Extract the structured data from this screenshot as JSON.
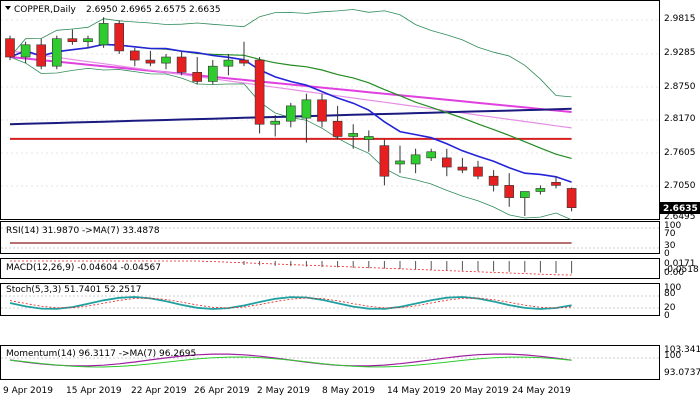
{
  "header": {
    "symbol_timeframe": "COPPER,Daily",
    "ohlc_text": "2.6950 2.6965 2.6575 2.6635"
  },
  "price_axis": {
    "ticks": [
      "2.9815",
      "2.9285",
      "2.8750",
      "2.8170",
      "2.7605",
      "2.7050",
      "2.6495"
    ],
    "current_price_label": "2.6635"
  },
  "indicators": {
    "rsi": {
      "label": "RSI(14) 31.9870  ->MA(7) 33.4878",
      "ticks": [
        "100",
        "70",
        "30",
        "0"
      ]
    },
    "macd": {
      "label": "MACD(12,26,9) -0.04604 -0.04567",
      "ticks": [
        "0.0171",
        "0.00",
        "-0.0518"
      ]
    },
    "stoch": {
      "label": "Stoch(5,3,3) 51.7401 52.2517",
      "ticks": [
        "100",
        "80",
        "20",
        "0"
      ]
    },
    "momentum": {
      "label": "Momentum(14) 96.3117  ->MA(7) 96.2695",
      "ticks": [
        "103.3413",
        "100",
        "93.0737"
      ]
    }
  },
  "x_axis": {
    "labels": [
      "9 Apr 2019",
      "15 Apr 2019",
      "22 Apr 2019",
      "26 Apr 2019",
      "2 May 2019",
      "8 May 2019",
      "14 May 2019",
      "20 May 2019",
      "24 May 2019"
    ]
  },
  "colors": {
    "bull": "#2ecc2e",
    "bear": "#e62020",
    "ma_fast": "#2323d8",
    "ma_medium": "#228b22",
    "ma_slow_magenta": "#e040e0",
    "ma_pink": "#e68fe6",
    "ma_navy": "#1a1a80",
    "ma_red": "#d42020",
    "bollinger": "#2e8b57",
    "grid": "#cccccc"
  },
  "chart_data": {
    "type": "candlestick",
    "title": "COPPER,Daily",
    "ylim": [
      2.645,
      3.0
    ],
    "dates": [
      "2019-04-08",
      "2019-04-09",
      "2019-04-10",
      "2019-04-11",
      "2019-04-12",
      "2019-04-15",
      "2019-04-16",
      "2019-04-17",
      "2019-04-18",
      "2019-04-19",
      "2019-04-22",
      "2019-04-23",
      "2019-04-24",
      "2019-04-25",
      "2019-04-26",
      "2019-04-29",
      "2019-04-30",
      "2019-05-01",
      "2019-05-02",
      "2019-05-03",
      "2019-05-06",
      "2019-05-07",
      "2019-05-08",
      "2019-05-09",
      "2019-05-10",
      "2019-05-13",
      "2019-05-14",
      "2019-05-15",
      "2019-05-16",
      "2019-05-17",
      "2019-05-20",
      "2019-05-21",
      "2019-05-22",
      "2019-05-23",
      "2019-05-24",
      "2019-05-27",
      "2019-05-28"
    ],
    "ohlc": [
      [
        2.94,
        2.945,
        2.905,
        2.91
      ],
      [
        2.91,
        2.935,
        2.9,
        2.93
      ],
      [
        2.93,
        2.94,
        2.89,
        2.895
      ],
      [
        2.895,
        2.945,
        2.89,
        2.94
      ],
      [
        2.94,
        2.955,
        2.93,
        2.935
      ],
      [
        2.935,
        2.945,
        2.925,
        2.94
      ],
      [
        2.93,
        2.975,
        2.925,
        2.965
      ],
      [
        2.965,
        2.97,
        2.915,
        2.92
      ],
      [
        2.92,
        2.925,
        2.895,
        2.905
      ],
      [
        2.905,
        2.92,
        2.895,
        2.9
      ],
      [
        2.9,
        2.915,
        2.89,
        2.91
      ],
      [
        2.91,
        2.92,
        2.88,
        2.885
      ],
      [
        2.885,
        2.91,
        2.865,
        2.87
      ],
      [
        2.87,
        2.905,
        2.865,
        2.895
      ],
      [
        2.895,
        2.915,
        2.88,
        2.905
      ],
      [
        2.905,
        2.935,
        2.895,
        2.9
      ],
      [
        2.905,
        2.91,
        2.785,
        2.8
      ],
      [
        2.8,
        2.815,
        2.78,
        2.805
      ],
      [
        2.805,
        2.835,
        2.795,
        2.83
      ],
      [
        2.81,
        2.85,
        2.77,
        2.84
      ],
      [
        2.84,
        2.85,
        2.795,
        2.805
      ],
      [
        2.805,
        2.83,
        2.775,
        2.78
      ],
      [
        2.78,
        2.8,
        2.76,
        2.785
      ],
      [
        2.775,
        2.79,
        2.755,
        2.78
      ],
      [
        2.765,
        2.775,
        2.7,
        2.715
      ],
      [
        2.735,
        2.765,
        2.72,
        2.74
      ],
      [
        2.735,
        2.76,
        2.72,
        2.75
      ],
      [
        2.745,
        2.76,
        2.74,
        2.755
      ],
      [
        2.745,
        2.76,
        2.715,
        2.73
      ],
      [
        2.73,
        2.745,
        2.72,
        2.725
      ],
      [
        2.73,
        2.74,
        2.71,
        2.715
      ],
      [
        2.715,
        2.725,
        2.69,
        2.7
      ],
      [
        2.7,
        2.72,
        2.665,
        2.68
      ],
      [
        2.68,
        2.69,
        2.65,
        2.69
      ],
      [
        2.69,
        2.7,
        2.685,
        2.695
      ],
      [
        2.705,
        2.715,
        2.695,
        2.7
      ],
      [
        2.695,
        2.6965,
        2.6575,
        2.6635
      ]
    ]
  }
}
